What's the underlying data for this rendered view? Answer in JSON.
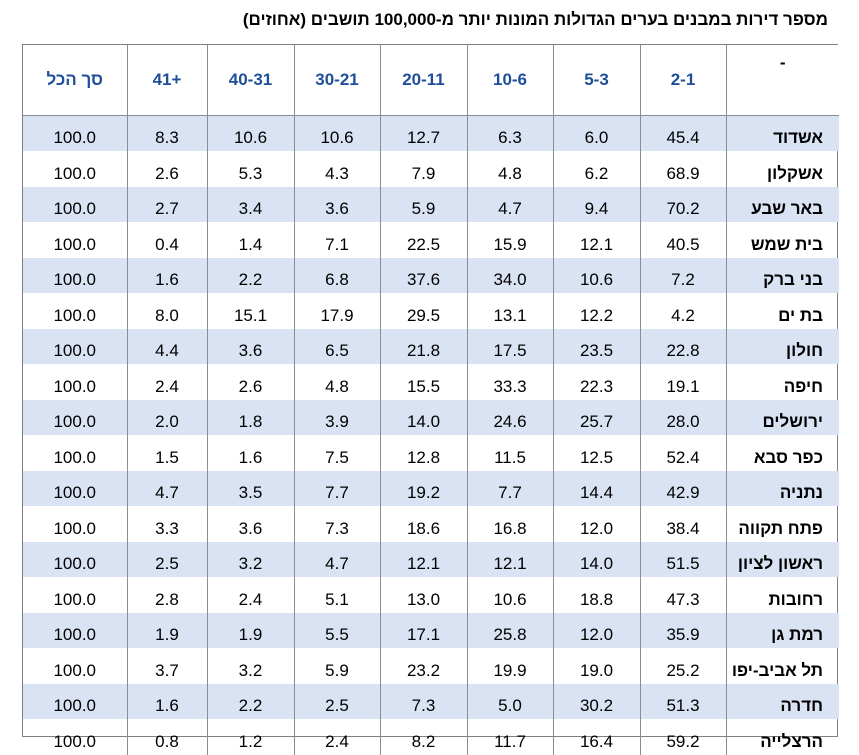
{
  "title": "מספר דירות במבנים בערים הגדולות המונות יותר מ-100,000 תושבים (אחוזים)",
  "table": {
    "columns": [
      "סך הכל",
      "41+",
      "40-31",
      "30-21",
      "20-11",
      "10-6",
      "5-3",
      "2-1",
      "-"
    ],
    "rows": [
      {
        "city": "אשדוד",
        "values": [
          "100.0",
          "8.3",
          "10.6",
          "10.6",
          "12.7",
          "6.3",
          "6.0",
          "45.4"
        ]
      },
      {
        "city": "אשקלון",
        "values": [
          "100.0",
          "2.6",
          "5.3",
          "4.3",
          "7.9",
          "4.8",
          "6.2",
          "68.9"
        ]
      },
      {
        "city": "באר שבע",
        "values": [
          "100.0",
          "2.7",
          "3.4",
          "3.6",
          "5.9",
          "4.7",
          "9.4",
          "70.2"
        ]
      },
      {
        "city": "בית שמש",
        "values": [
          "100.0",
          "0.4",
          "1.4",
          "7.1",
          "22.5",
          "15.9",
          "12.1",
          "40.5"
        ]
      },
      {
        "city": "בני ברק",
        "values": [
          "100.0",
          "1.6",
          "2.2",
          "6.8",
          "37.6",
          "34.0",
          "10.6",
          "7.2"
        ]
      },
      {
        "city": "בת ים",
        "values": [
          "100.0",
          "8.0",
          "15.1",
          "17.9",
          "29.5",
          "13.1",
          "12.2",
          "4.2"
        ]
      },
      {
        "city": "חולון",
        "values": [
          "100.0",
          "4.4",
          "3.6",
          "6.5",
          "21.8",
          "17.5",
          "23.5",
          "22.8"
        ]
      },
      {
        "city": "חיפה",
        "values": [
          "100.0",
          "2.4",
          "2.6",
          "4.8",
          "15.5",
          "33.3",
          "22.3",
          "19.1"
        ]
      },
      {
        "city": "ירושלים",
        "values": [
          "100.0",
          "2.0",
          "1.8",
          "3.9",
          "14.0",
          "24.6",
          "25.7",
          "28.0"
        ]
      },
      {
        "city": "כפר סבא",
        "values": [
          "100.0",
          "1.5",
          "1.6",
          "7.5",
          "12.8",
          "11.5",
          "12.5",
          "52.4"
        ]
      },
      {
        "city": "נתניה",
        "values": [
          "100.0",
          "4.7",
          "3.5",
          "7.7",
          "19.2",
          "7.7",
          "14.4",
          "42.9"
        ]
      },
      {
        "city": "פתח תקווה",
        "values": [
          "100.0",
          "3.3",
          "3.6",
          "7.3",
          "18.6",
          "16.8",
          "12.0",
          "38.4"
        ]
      },
      {
        "city": "ראשון לציון",
        "values": [
          "100.0",
          "2.5",
          "3.2",
          "4.7",
          "12.1",
          "12.1",
          "14.0",
          "51.5"
        ]
      },
      {
        "city": "רחובות",
        "values": [
          "100.0",
          "2.8",
          "2.4",
          "5.1",
          "13.0",
          "10.6",
          "18.8",
          "47.3"
        ]
      },
      {
        "city": "רמת גן",
        "values": [
          "100.0",
          "1.9",
          "1.9",
          "5.5",
          "17.1",
          "25.8",
          "12.0",
          "35.9"
        ]
      },
      {
        "city": "תל אביב-יפו",
        "values": [
          "100.0",
          "3.7",
          "3.2",
          "5.9",
          "23.2",
          "19.9",
          "19.0",
          "25.2"
        ]
      },
      {
        "city": "חדרה",
        "values": [
          "100.0",
          "1.6",
          "2.2",
          "2.5",
          "7.3",
          "5.0",
          "30.2",
          "51.3"
        ]
      },
      {
        "city": "הרצלייה",
        "values": [
          "100.0",
          "0.8",
          "1.2",
          "2.4",
          "8.2",
          "11.7",
          "16.4",
          "59.2"
        ]
      }
    ]
  },
  "colors": {
    "header_text": "#1f4e9a",
    "band_row": "#dae3f3",
    "border": "#8c8c8c"
  }
}
